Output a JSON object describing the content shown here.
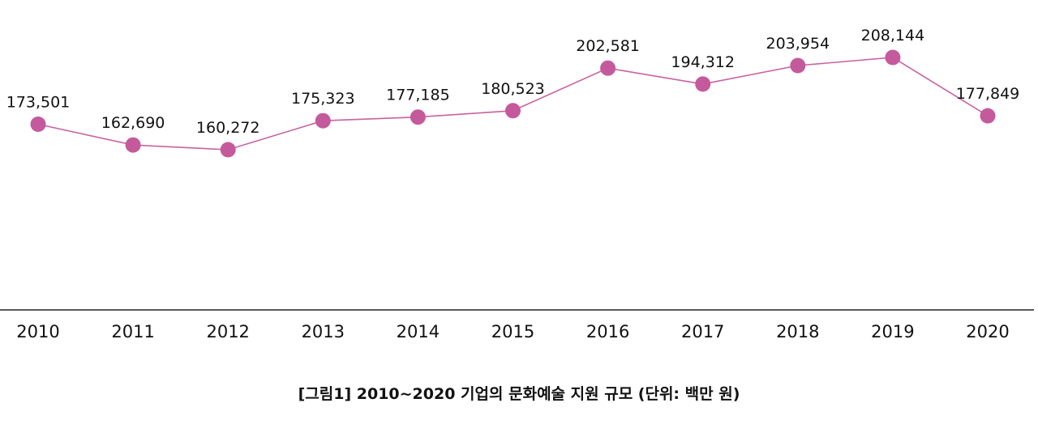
{
  "chart_data": {
    "type": "line",
    "categories": [
      "2010",
      "2011",
      "2012",
      "2013",
      "2014",
      "2015",
      "2016",
      "2017",
      "2018",
      "2019",
      "2020"
    ],
    "values": [
      173501,
      162690,
      160272,
      175323,
      177185,
      180523,
      202581,
      194312,
      203954,
      208144,
      177849
    ],
    "data_labels": [
      "173,501",
      "162,690",
      "160,272",
      "175,323",
      "177,185",
      "180,523",
      "202,581",
      "194,312",
      "203,954",
      "208,144",
      "177,849"
    ],
    "caption": "[그림1] 2010~2020 기업의 문화예술 지원 규모 (단위: 백만 원)",
    "xlabel": "",
    "ylabel": "",
    "grid": false,
    "legend": "none",
    "colors": {
      "line": "#c9629f",
      "marker": "#c45a9b",
      "axis": "#222222"
    }
  }
}
